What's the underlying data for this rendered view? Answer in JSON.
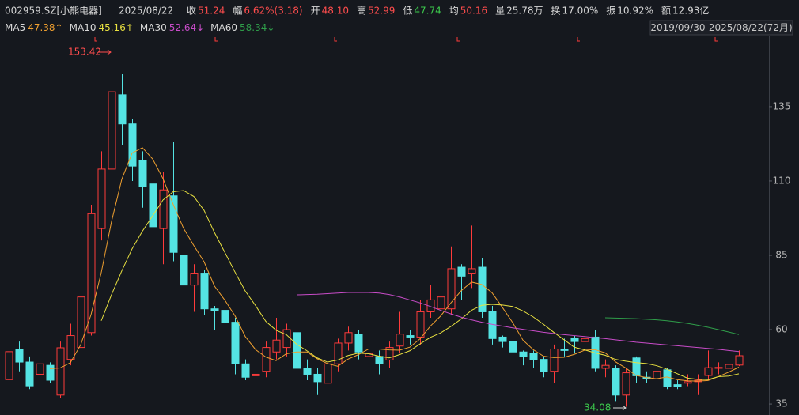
{
  "header": {
    "symbol": "002959.SZ[小熊电器]",
    "date": "2025/08/22",
    "items": [
      {
        "label": "收",
        "value": "51.24",
        "color": "#ff4d4d"
      },
      {
        "label": "幅",
        "value": "6.62%(3.18)",
        "color": "#ff4d4d"
      },
      {
        "label": "开",
        "value": "48.10",
        "color": "#ff4d4d"
      },
      {
        "label": "高",
        "value": "52.99",
        "color": "#ff4d4d"
      },
      {
        "label": "低",
        "value": "47.74",
        "color": "#3cc84c"
      },
      {
        "label": "均",
        "value": "50.16",
        "color": "#ff4d4d"
      },
      {
        "label": "量",
        "value": "25.78万",
        "color": "#d8d8d8"
      },
      {
        "label": "换",
        "value": "17.00%",
        "color": "#d8d8d8"
      },
      {
        "label": "振",
        "value": "10.92%",
        "color": "#d8d8d8"
      },
      {
        "label": "额",
        "value": "12.93亿",
        "color": "#d8d8d8"
      }
    ]
  },
  "range_label": "2019/09/30-2025/08/22(72月)",
  "chart_data": {
    "type": "candlestick",
    "up_color": "#ff3b3b",
    "down_color": "#54e3e3",
    "open": [
      43.2,
      53.4,
      49.1,
      45,
      48,
      38,
      50,
      54,
      59,
      94,
      114,
      139,
      129.2,
      117,
      109,
      94,
      105,
      85,
      75,
      79,
      67,
      66.5,
      62.5,
      48.5,
      44.5,
      46,
      52.5,
      54,
      59,
      47,
      45,
      42,
      48.5,
      55.5,
      58.5,
      51,
      51,
      49.8,
      54.5,
      58,
      57.5,
      66,
      67,
      67,
      81,
      79,
      81,
      66,
      57.5,
      56,
      52.5,
      52,
      50,
      46,
      53.5,
      57,
      56,
      57.5,
      47,
      47,
      38,
      50.5,
      44,
      43.5,
      46.5,
      41.5,
      42,
      42.5,
      44.6,
      47,
      47,
      48.1
    ],
    "high": [
      58,
      56,
      51,
      50,
      49,
      56,
      62,
      80,
      102,
      120,
      153.42,
      146,
      131,
      120,
      112,
      113,
      123,
      87,
      82,
      80,
      68,
      70,
      64,
      50,
      47,
      56,
      64,
      62,
      70,
      50,
      47,
      50,
      57,
      61,
      60,
      55,
      53,
      56,
      66,
      60,
      70,
      75,
      74,
      88,
      82,
      95,
      84,
      68,
      58,
      57,
      53,
      53,
      51,
      55,
      57,
      58,
      65,
      60,
      50,
      48,
      47,
      51,
      46,
      48,
      47,
      43,
      45,
      45,
      53,
      49,
      50,
      52.99
    ],
    "low": [
      42,
      46,
      40,
      44,
      42,
      37,
      48,
      52,
      58,
      90,
      107,
      122,
      110,
      101,
      88,
      82,
      83,
      70,
      66,
      65,
      60,
      60,
      45,
      43,
      43,
      44,
      50,
      51,
      45,
      43,
      38,
      40,
      46,
      53,
      50,
      49,
      45,
      47,
      52,
      55,
      55,
      64,
      62,
      65,
      70,
      74,
      64,
      55,
      54,
      51,
      48,
      47,
      44,
      42,
      51,
      52,
      53,
      46,
      44,
      36,
      34.08,
      42,
      42,
      42,
      40,
      40,
      41,
      38,
      43,
      45,
      46,
      47.74
    ],
    "close": [
      52.6,
      49.1,
      41.1,
      48.5,
      43,
      53.9,
      58,
      71,
      99,
      114,
      140,
      129.2,
      115,
      108,
      94.6,
      107,
      86,
      75,
      79,
      67,
      66.5,
      62.5,
      48.5,
      44,
      45,
      54,
      56.5,
      60,
      47,
      45,
      42.5,
      48.5,
      55.5,
      59,
      52.5,
      52,
      48.5,
      54,
      58.5,
      57.5,
      66,
      70,
      71,
      80.5,
      78,
      80.5,
      66,
      57,
      56,
      52.5,
      51,
      50,
      46,
      53.5,
      53,
      56,
      57,
      47,
      48,
      38,
      45.5,
      44.5,
      43.5,
      46,
      41,
      41,
      42.5,
      43,
      47.2,
      47.3,
      48.3,
      51.24
    ],
    "ma": [
      {
        "name": "MA5",
        "value_label": "47.38↑",
        "color": "#f0a030",
        "values": [
          null,
          null,
          null,
          null,
          46.9,
          47.1,
          48.9,
          54.9,
          65.0,
          79.2,
          96.4,
          110.6,
          119.4,
          121.2,
          117.4,
          110.8,
          102.1,
          94.1,
          88.3,
          82.8,
          74.7,
          70.0,
          64.7,
          57.7,
          53.3,
          50.8,
          49.6,
          51.9,
          52.5,
          52.5,
          50.2,
          48.6,
          47.7,
          50.1,
          51.6,
          53.5,
          53.5,
          53.2,
          53.1,
          54.1,
          56.9,
          61.2,
          64.6,
          69.0,
          73.1,
          76.0,
          75.2,
          72.4,
          67.5,
          62.4,
          56.5,
          53.3,
          51.1,
          50.6,
          50.7,
          51.7,
          53.1,
          53.3,
          52.2,
          49.2,
          47.1,
          44.6,
          43.9,
          43.5,
          44.1,
          43.2,
          42.8,
          42.7,
          42.9,
          44.2,
          45.7,
          47.38
        ]
      },
      {
        "name": "MA10",
        "value_label": "45.16↑",
        "color": "#e8e040",
        "values": [
          null,
          null,
          null,
          null,
          null,
          null,
          null,
          null,
          null,
          63.0,
          71.8,
          79.8,
          87.2,
          93.1,
          98.3,
          103.6,
          106.4,
          106.8,
          104.8,
          100.1,
          92.7,
          86.1,
          79.4,
          73.0,
          68.1,
          62.8,
          59.8,
          58.3,
          55.1,
          52.9,
          50.5,
          49.1,
          49.8,
          51.3,
          52.1,
          51.9,
          51.1,
          50.5,
          51.6,
          52.9,
          55.2,
          57.4,
          58.9,
          61.1,
          63.6,
          66.5,
          68.2,
          68.5,
          68.3,
          67.8,
          66.3,
          64.3,
          61.8,
          59.1,
          56.6,
          54.1,
          53.2,
          52.2,
          51.4,
          50.0,
          49.4,
          48.9,
          48.6,
          47.9,
          46.7,
          45.2,
          43.7,
          43.3,
          43.2,
          44.2,
          44.4,
          45.16
        ]
      },
      {
        "name": "MA30",
        "value_label": "52.64↓",
        "color": "#c84cc8",
        "values": [
          null,
          null,
          null,
          null,
          null,
          null,
          null,
          null,
          null,
          null,
          null,
          null,
          null,
          null,
          null,
          null,
          null,
          null,
          null,
          null,
          null,
          null,
          null,
          null,
          null,
          null,
          null,
          null,
          71.7,
          71.8,
          71.9,
          72.1,
          72.3,
          72.5,
          72.5,
          72.5,
          72.3,
          71.8,
          71.0,
          70.0,
          69.0,
          67.8,
          66.5,
          65.3,
          64.2,
          63.3,
          62.5,
          61.8,
          61.2,
          60.6,
          60.1,
          59.6,
          59.1,
          58.7,
          58.3,
          58.0,
          57.7,
          57.3,
          57.0,
          56.6,
          56.2,
          55.8,
          55.5,
          55.2,
          54.9,
          54.6,
          54.3,
          54.0,
          53.7,
          53.4,
          53.0,
          52.64
        ]
      },
      {
        "name": "MA60",
        "value_label": "58.34↓",
        "color": "#2f9e4a",
        "values": [
          null,
          null,
          null,
          null,
          null,
          null,
          null,
          null,
          null,
          null,
          null,
          null,
          null,
          null,
          null,
          null,
          null,
          null,
          null,
          null,
          null,
          null,
          null,
          null,
          null,
          null,
          null,
          null,
          null,
          null,
          null,
          null,
          null,
          null,
          null,
          null,
          null,
          null,
          null,
          null,
          null,
          null,
          null,
          null,
          null,
          null,
          null,
          null,
          null,
          null,
          null,
          null,
          null,
          null,
          null,
          null,
          null,
          null,
          64.0,
          63.9,
          63.8,
          63.7,
          63.5,
          63.3,
          63.0,
          62.6,
          62.1,
          61.5,
          60.8,
          60.0,
          59.2,
          58.34
        ]
      }
    ],
    "ylim": [
      31.3,
      158.9
    ],
    "yticks": [
      35,
      60,
      85,
      110,
      135
    ],
    "annotations": [
      {
        "text": "153.42"
      },
      {
        "text": "34.08"
      }
    ]
  }
}
